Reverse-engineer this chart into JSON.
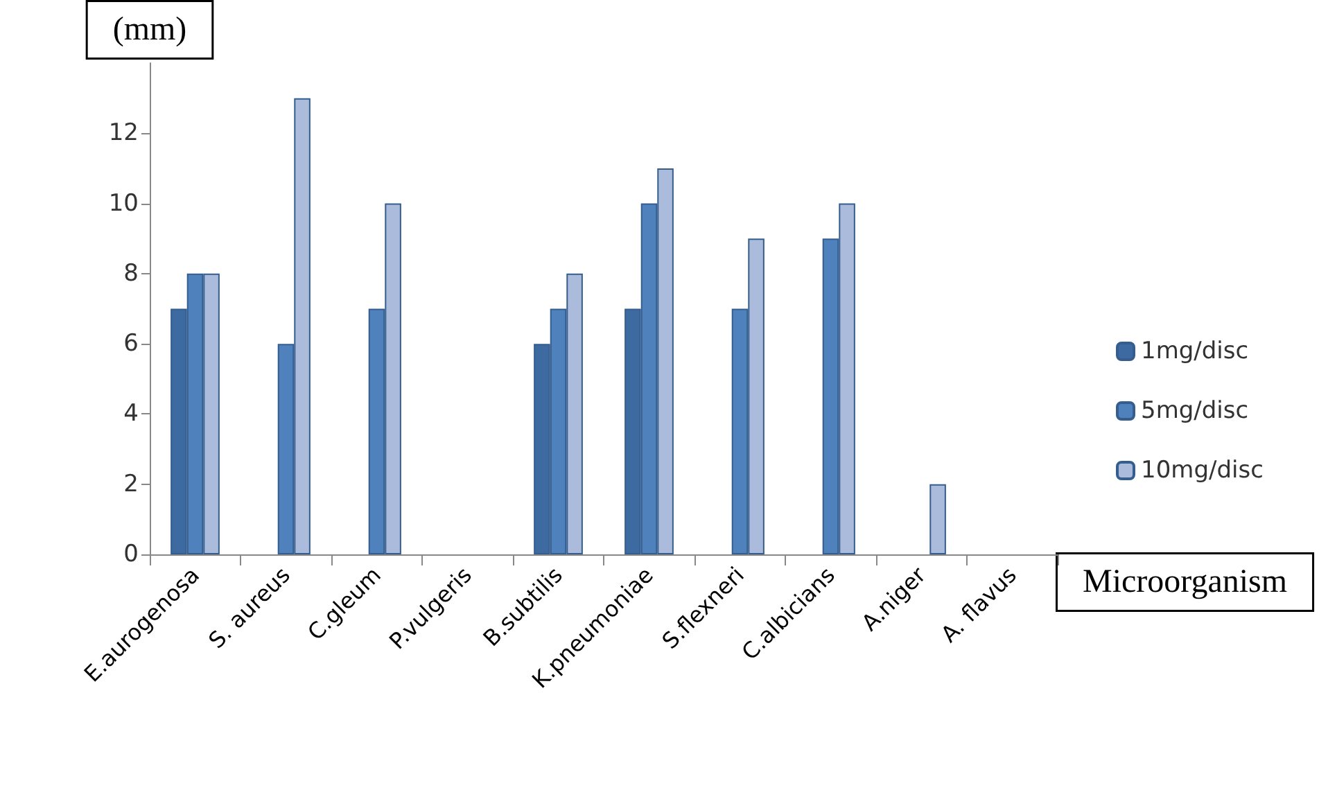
{
  "chart_data": {
    "type": "bar",
    "ylabel": "(mm)",
    "xlabel": "Microorganism",
    "categories": [
      "E.aurogenosa",
      "S. aureus",
      "C.gleum",
      "P.vulgeris",
      "B.subtilis",
      "K.pneumoniae",
      "S.flexneri",
      "C.albicians",
      "A.niger",
      "A. flavus"
    ],
    "series": [
      {
        "name": "1mg/disc",
        "color": "#3d6aa0",
        "values": [
          7,
          0,
          0,
          0,
          6,
          7,
          0,
          0,
          0,
          0
        ]
      },
      {
        "name": "5mg/disc",
        "color": "#4f81bd",
        "values": [
          8,
          6,
          7,
          0,
          7,
          10,
          7,
          9,
          0,
          0
        ]
      },
      {
        "name": "10mg/disc",
        "color": "#aabbdb",
        "values": [
          8,
          13,
          10,
          0,
          8,
          11,
          9,
          10,
          2,
          0
        ]
      }
    ],
    "ylim": [
      0,
      14
    ],
    "yticks": [
      0,
      2,
      4,
      6,
      8,
      10,
      12
    ],
    "grid": false,
    "legend": "right"
  }
}
